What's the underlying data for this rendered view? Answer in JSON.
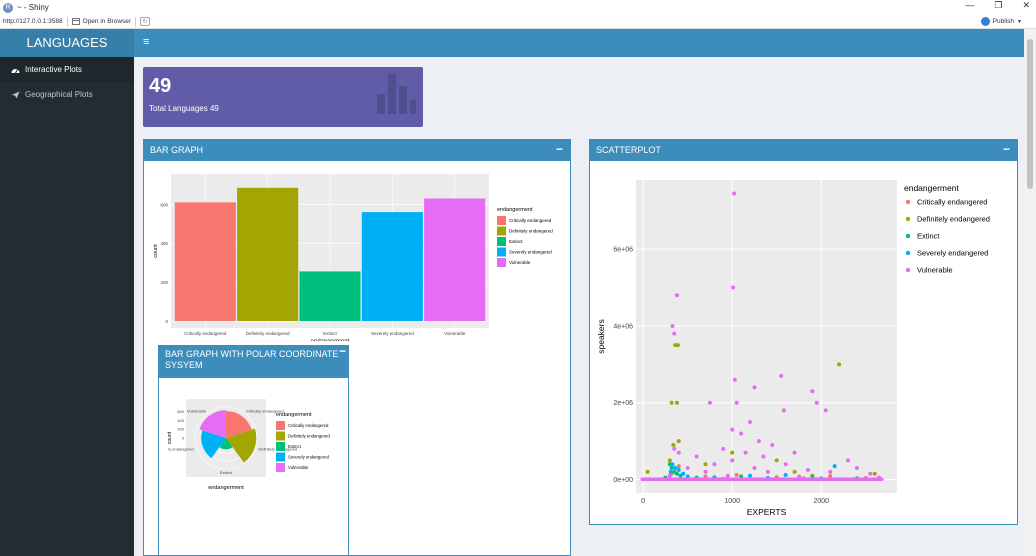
{
  "window": {
    "title": "~ - Shiny",
    "url": "http://127.0.0.1:3588",
    "open_in_browser": "Open in Browser",
    "publish": "Publish",
    "minimize": "—",
    "restore": "❐",
    "close": "✕"
  },
  "header": {
    "logo": "LANGUAGES",
    "toggle": "≡"
  },
  "sidebar": {
    "items": [
      {
        "label": "Interactive Plots",
        "icon": "dashboard-icon"
      },
      {
        "label": "Geographical Plots",
        "icon": "send-icon"
      }
    ]
  },
  "valuebox": {
    "value": "49",
    "subtitle": "Total Languages 49",
    "color": "#605ca8"
  },
  "boxes": {
    "bar": {
      "title": "BAR GRAPH",
      "collapse": "−"
    },
    "polar": {
      "title": "BAR GRAPH WITH POLAR COORDINATE SYSYEM",
      "collapse": "−"
    },
    "scatter": {
      "title": "SCATTERPLOT",
      "collapse": "−"
    }
  },
  "chart_data": [
    {
      "type": "bar",
      "categories": [
        "Critically endangered",
        "Definitely endangered",
        "Extinct",
        "Severely endangered",
        "Vulnerable"
      ],
      "values": [
        610,
        685,
        255,
        560,
        630
      ],
      "colors": [
        "#F8766D",
        "#A3A500",
        "#00BF7D",
        "#00B0F6",
        "#E76BF3"
      ],
      "xlabel": "endangerment",
      "ylabel": "count",
      "yticks": [
        "0",
        "200",
        "400",
        "600"
      ],
      "ylim": [
        0,
        720
      ],
      "legend_title": "endangerment",
      "legend_labels": [
        "Critically endangered",
        "Definitely endangered",
        "Extinct",
        "Severely endangered",
        "Vulnerable"
      ],
      "legend": "right"
    },
    {
      "type": "bar",
      "coord": "polar",
      "categories": [
        "Critically endangered",
        "Definitely endangered",
        "Extinct",
        "Severely endangered",
        "Vulnerable"
      ],
      "values": [
        610,
        685,
        255,
        560,
        630
      ],
      "xlabel": "endangerment",
      "ylabel": "count",
      "yticks": [
        "0",
        "200",
        "400",
        "600"
      ],
      "axis_labels": [
        "Critically endangered",
        "Definitely endangered",
        "Extinct",
        "Severely endangered",
        "Vulnerable"
      ],
      "axis_labels_visible": [
        "Critically endangered",
        "Definitely endangered",
        "Extinct",
        "ly endangered",
        "Vulnerable"
      ],
      "legend_title": "endangerment",
      "legend_labels": [
        "Critically endangered",
        "Definitely endangered",
        "Extinct",
        "Severely endangered",
        "Vulnerable"
      ],
      "legend": "right"
    },
    {
      "type": "scatter",
      "xlabel": "EXPERTS",
      "ylabel": "speakers",
      "xticks": [
        "0",
        "1000",
        "2000"
      ],
      "yticks": [
        "0e+00",
        "2e+06",
        "4e+06",
        "6e+06"
      ],
      "xlim": [
        -80,
        2850
      ],
      "ylim": [
        -350000,
        7800000
      ],
      "legend_title": "endangerment",
      "legend_labels": [
        "Critically endangered",
        "Definitely endangered",
        "Extinct",
        "Severely endangered",
        "Vulnerable"
      ],
      "legend": "right",
      "series": [
        {
          "color": "#F8766D",
          "points": [
            [
              320,
              150000
            ],
            [
              400,
              350000
            ],
            [
              700,
              80000
            ],
            [
              1050,
              120000
            ],
            [
              1500,
              60000
            ],
            [
              2100,
              90000
            ],
            [
              2500,
              40000
            ],
            [
              250,
              30000
            ],
            [
              900,
              20000
            ],
            [
              1800,
              30000
            ]
          ]
        },
        {
          "color": "#A3A500",
          "points": [
            [
              360,
              3500000
            ],
            [
              390,
              3500000
            ],
            [
              320,
              2000000
            ],
            [
              380,
              2000000
            ],
            [
              2200,
              3000000
            ],
            [
              340,
              900000
            ],
            [
              400,
              1000000
            ],
            [
              1000,
              700000
            ],
            [
              1500,
              500000
            ],
            [
              700,
              400000
            ],
            [
              1700,
              200000
            ],
            [
              2600,
              150000
            ],
            [
              50,
              200000
            ],
            [
              300,
              500000
            ],
            [
              1900,
              100000
            ]
          ]
        },
        {
          "color": "#00BF7D",
          "points": [
            [
              300,
              400000
            ],
            [
              320,
              300000
            ],
            [
              350,
              200000
            ],
            [
              380,
              150000
            ],
            [
              420,
              100000
            ],
            [
              600,
              50000
            ],
            [
              1100,
              80000
            ],
            [
              1900,
              60000
            ],
            [
              2400,
              30000
            ],
            [
              250,
              50000
            ]
          ]
        },
        {
          "color": "#00B0F6",
          "points": [
            [
              310,
              200000
            ],
            [
              330,
              400000
            ],
            [
              360,
              300000
            ],
            [
              400,
              250000
            ],
            [
              450,
              150000
            ],
            [
              500,
              80000
            ],
            [
              800,
              60000
            ],
            [
              1200,
              100000
            ],
            [
              1600,
              120000
            ],
            [
              2150,
              350000
            ],
            [
              2000,
              30000
            ],
            [
              2650,
              20000
            ],
            [
              1400,
              40000
            ]
          ]
        },
        {
          "color": "#E76BF3",
          "points": [
            [
              1020,
              7450000
            ],
            [
              1010,
              5000000
            ],
            [
              380,
              4800000
            ],
            [
              330,
              4000000
            ],
            [
              350,
              3800000
            ],
            [
              1030,
              2600000
            ],
            [
              1550,
              2700000
            ],
            [
              1900,
              2300000
            ],
            [
              1250,
              2400000
            ],
            [
              1950,
              2000000
            ],
            [
              750,
              2000000
            ],
            [
              1050,
              2000000
            ],
            [
              1580,
              1800000
            ],
            [
              2050,
              1800000
            ],
            [
              1200,
              1500000
            ],
            [
              1000,
              1300000
            ],
            [
              1100,
              1200000
            ],
            [
              1300,
              1000000
            ],
            [
              1450,
              900000
            ],
            [
              900,
              800000
            ],
            [
              1700,
              700000
            ],
            [
              2300,
              500000
            ],
            [
              600,
              600000
            ],
            [
              1150,
              700000
            ],
            [
              1350,
              600000
            ],
            [
              350,
              800000
            ],
            [
              400,
              700000
            ],
            [
              1000,
              500000
            ],
            [
              800,
              400000
            ],
            [
              1600,
              400000
            ],
            [
              2400,
              300000
            ],
            [
              500,
              300000
            ],
            [
              1250,
              300000
            ],
            [
              1850,
              250000
            ],
            [
              2550,
              150000
            ],
            [
              700,
              200000
            ],
            [
              1400,
              200000
            ],
            [
              2100,
              200000
            ],
            [
              300,
              100000
            ],
            [
              950,
              100000
            ],
            [
              1750,
              80000
            ],
            [
              2650,
              50000
            ]
          ]
        }
      ]
    }
  ]
}
